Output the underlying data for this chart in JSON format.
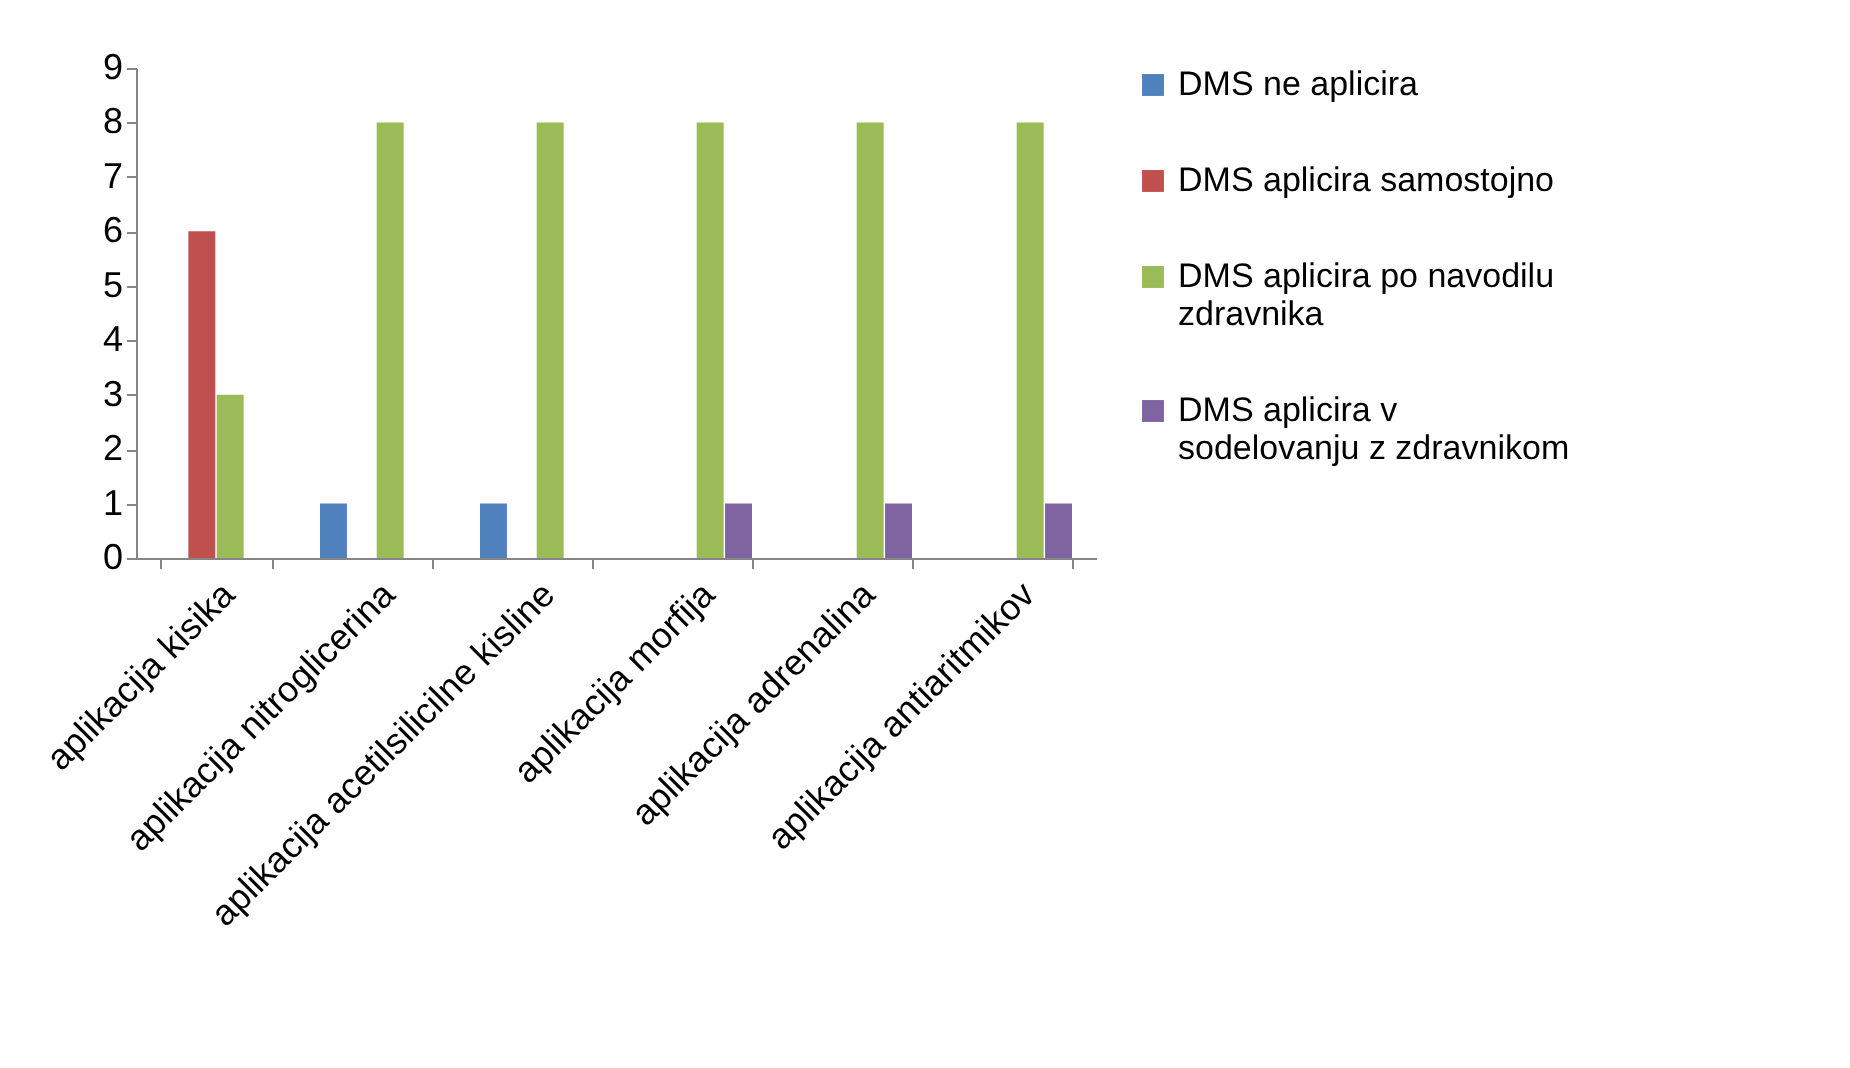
{
  "chart_data": {
    "type": "bar",
    "categories": [
      "aplikacija kisika",
      "aplikacija nitroglicerina",
      "aplikacija acetilsilicilne kisline",
      "aplikacija morfija",
      "aplikacija adrenalina",
      "aplikacija antiaritmikov"
    ],
    "series": [
      {
        "name": "DMS ne aplicira",
        "color": "#4f81bd",
        "values": [
          0,
          1,
          1,
          0,
          0,
          0
        ]
      },
      {
        "name": "DMS aplicira samostojno",
        "color": "#c0504d",
        "values": [
          6,
          0,
          0,
          0,
          0,
          0
        ]
      },
      {
        "name": "DMS aplicira po navodilu zdravnika",
        "color": "#9bbb59",
        "values": [
          3,
          8,
          8,
          8,
          8,
          8
        ]
      },
      {
        "name": "DMS aplicira v sodelovanju z zdravnikom",
        "color": "#8064a2",
        "values": [
          0,
          0,
          0,
          1,
          1,
          1
        ]
      }
    ],
    "ylim": [
      0,
      9
    ],
    "yticks": [
      0,
      1,
      2,
      3,
      4,
      5,
      6,
      7,
      8,
      9
    ],
    "grid": false,
    "legend": "right"
  }
}
